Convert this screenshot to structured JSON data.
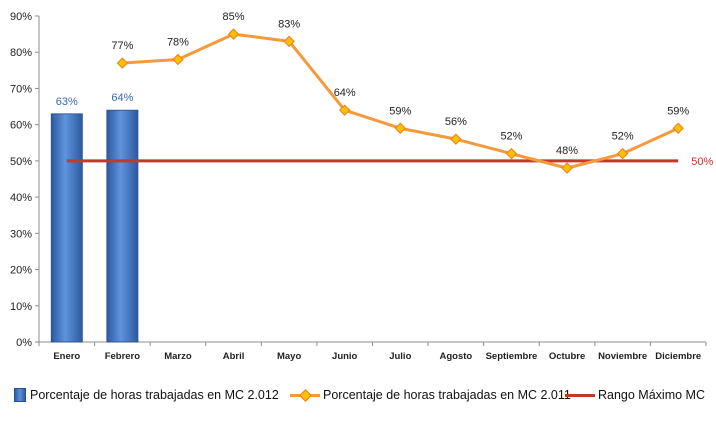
{
  "chart_data": {
    "type": "bar",
    "categories": [
      "Enero",
      "Febrero",
      "Marzo",
      "Abril",
      "Mayo",
      "Junio",
      "Julio",
      "Agosto",
      "Septiembre",
      "Octubre",
      "Noviembre",
      "Diciembre"
    ],
    "y_ticks": [
      "0%",
      "10%",
      "20%",
      "30%",
      "40%",
      "50%",
      "60%",
      "70%",
      "80%",
      "90%"
    ],
    "ylim": [
      0,
      90
    ],
    "grid": false,
    "legend_position": "bottom",
    "series": [
      {
        "name": "Porcentaje de horas trabajadas en MC 2.012",
        "type": "bar",
        "color": "#4a7cc9",
        "values": [
          63,
          64,
          null,
          null,
          null,
          null,
          null,
          null,
          null,
          null,
          null,
          null
        ],
        "labels": [
          "63%",
          "64%",
          "",
          "",
          "",
          "",
          "",
          "",
          "",
          "",
          "",
          ""
        ]
      },
      {
        "name": "Porcentaje de horas trabajadas en MC 2.011",
        "type": "line",
        "color": "#f59a3a",
        "marker_color": "#ffc000",
        "values": [
          null,
          77,
          78,
          85,
          83,
          64,
          59,
          56,
          52,
          48,
          52,
          59
        ],
        "labels": [
          "",
          "77%",
          "78%",
          "85%",
          "83%",
          "64%",
          "59%",
          "56%",
          "52%",
          "48%",
          "52%",
          "59%"
        ]
      },
      {
        "name": "Rango Máximo MC",
        "type": "line",
        "color": "#c0392b",
        "values": [
          50,
          50,
          50,
          50,
          50,
          50,
          50,
          50,
          50,
          50,
          50,
          50
        ],
        "end_label": "50%"
      }
    ]
  }
}
